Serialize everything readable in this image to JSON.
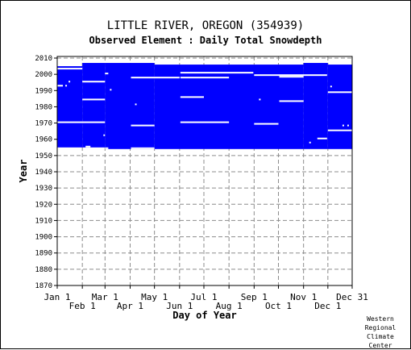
{
  "title": "LITTLE RIVER, OREGON   (354939)",
  "subtitle": "Observed Element : Daily Total Snowdepth",
  "credit": [
    "Western",
    "Regional",
    "Climate",
    "Center"
  ],
  "colors": {
    "data": "#0000ff",
    "grid": "#8c8c8c",
    "missing": "#ffffff"
  },
  "chart_data": {
    "type": "heatmap",
    "title": "LITTLE RIVER, OREGON   (354939)",
    "subtitle": "Observed Element : Daily Total Snowdepth",
    "xlabel": "Day of Year",
    "ylabel": "Year",
    "xlim": [
      1,
      365
    ],
    "ylim": [
      1870,
      2011
    ],
    "grid": true,
    "x_ticks_top_row": [
      {
        "label": "Jan 1",
        "day": 1
      },
      {
        "label": "Mar 1",
        "day": 60
      },
      {
        "label": "May 1",
        "day": 121
      },
      {
        "label": "Jul 1",
        "day": 182
      },
      {
        "label": "Sep 1",
        "day": 244
      },
      {
        "label": "Nov 1",
        "day": 305
      },
      {
        "label": "Dec 31",
        "day": 365
      }
    ],
    "x_ticks_bottom_row": [
      {
        "label": "Feb 1",
        "day": 32
      },
      {
        "label": "Apr 1",
        "day": 91
      },
      {
        "label": "Jun 1",
        "day": 152
      },
      {
        "label": "Aug 1",
        "day": 213
      },
      {
        "label": "Oct 1",
        "day": 274
      },
      {
        "label": "Dec 1",
        "day": 335
      }
    ],
    "y_ticks": [
      1870,
      1880,
      1890,
      1900,
      1910,
      1920,
      1930,
      1940,
      1950,
      1960,
      1970,
      1980,
      1990,
      2000,
      2010
    ],
    "coverage_note": "Blue marks days with a snowdepth observation; white gaps are missing days",
    "data_blocks": [
      {
        "day_start": 1,
        "day_end": 32,
        "year_start": 1955,
        "year_end": 2005
      },
      {
        "day_start": 32,
        "day_end": 60,
        "year_start": 1955,
        "year_end": 2007
      },
      {
        "day_start": 60,
        "day_end": 121,
        "year_start": 1954,
        "year_end": 2007
      },
      {
        "day_start": 121,
        "day_end": 305,
        "year_start": 1954,
        "year_end": 2006
      },
      {
        "day_start": 305,
        "day_end": 335,
        "year_start": 1954,
        "year_end": 2007
      },
      {
        "day_start": 335,
        "day_end": 365,
        "year_start": 1954,
        "year_end": 2006
      }
    ],
    "missing_segments": [
      {
        "year": 2003.5,
        "day_start": 1,
        "day_end": 32
      },
      {
        "year": 2000.5,
        "day_start": 60,
        "day_end": 64
      },
      {
        "year": 1998,
        "day_start": 92,
        "day_end": 152
      },
      {
        "year": 2001,
        "day_start": 153,
        "day_end": 243
      },
      {
        "year": 1998,
        "day_start": 153,
        "day_end": 213
      },
      {
        "year": 1999.5,
        "day_start": 244,
        "day_end": 334
      },
      {
        "year": 1998.5,
        "day_start": 275,
        "day_end": 305
      },
      {
        "year": 1995.5,
        "day_start": 32,
        "day_end": 60
      },
      {
        "year": 1995.5,
        "day_start": 15,
        "day_end": 17
      },
      {
        "year": 1993,
        "day_start": 1,
        "day_end": 8
      },
      {
        "year": 1993,
        "day_start": 11,
        "day_end": 13
      },
      {
        "year": 1992.5,
        "day_start": 338,
        "day_end": 340
      },
      {
        "year": 1990.5,
        "day_start": 66,
        "day_end": 68
      },
      {
        "year": 1989,
        "day_start": 335,
        "day_end": 365
      },
      {
        "year": 1986,
        "day_start": 153,
        "day_end": 182
      },
      {
        "year": 1984.5,
        "day_start": 32,
        "day_end": 60
      },
      {
        "year": 1984.5,
        "day_start": 250,
        "day_end": 252
      },
      {
        "year": 1983.5,
        "day_start": 275,
        "day_end": 305
      },
      {
        "year": 1981.5,
        "day_start": 97,
        "day_end": 99
      },
      {
        "year": 1970.5,
        "day_start": 1,
        "day_end": 60
      },
      {
        "year": 1970.5,
        "day_start": 153,
        "day_end": 213
      },
      {
        "year": 1969.5,
        "day_start": 244,
        "day_end": 274
      },
      {
        "year": 1968.5,
        "day_start": 92,
        "day_end": 121
      },
      {
        "year": 1968.5,
        "day_start": 353,
        "day_end": 355
      },
      {
        "year": 1968.5,
        "day_start": 359,
        "day_end": 361
      },
      {
        "year": 1965.5,
        "day_start": 335,
        "day_end": 365
      },
      {
        "year": 1962.5,
        "day_start": 58,
        "day_end": 60
      },
      {
        "year": 1960.5,
        "day_start": 322,
        "day_end": 334
      },
      {
        "year": 1958,
        "day_start": 312,
        "day_end": 314
      },
      {
        "year": 1955.5,
        "day_start": 36,
        "day_end": 42
      },
      {
        "year": 1954.5,
        "day_start": 60,
        "day_end": 64
      },
      {
        "year": 1954.5,
        "day_start": 92,
        "day_end": 121
      }
    ]
  }
}
